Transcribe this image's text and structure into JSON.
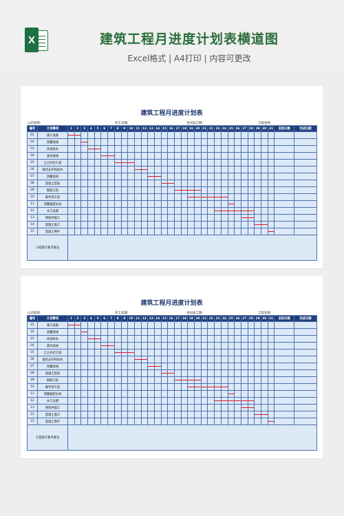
{
  "header": {
    "title": "建筑工程月进度计划表横道图",
    "subtitle": "Excel格式 | A4打印 | 内容可更改",
    "logo_letter": "X"
  },
  "sheet": {
    "title": "建筑工程月进度计划表",
    "company_label": "公司名称:",
    "start_label": "开工日期:",
    "contract_label": "合同总工期:",
    "project_label": "工程名称:",
    "columns": {
      "no": "编号",
      "task": "计划事项",
      "days": [
        "1",
        "2",
        "3",
        "4",
        "5",
        "6",
        "7",
        "8",
        "9",
        "10",
        "11",
        "12",
        "13",
        "14",
        "15",
        "16",
        "17",
        "18",
        "19",
        "20",
        "21",
        "22",
        "23",
        "24",
        "25",
        "26",
        "27",
        "28",
        "29",
        "30",
        "31"
      ],
      "actual": "实际天数",
      "done": "完成日期"
    },
    "tasks": [
      {
        "no": "01",
        "name": "施工准备",
        "start": 1,
        "end": 2
      },
      {
        "no": "02",
        "name": "测量放线",
        "start": 3,
        "end": 3
      },
      {
        "no": "03",
        "name": "场地排水",
        "start": 4,
        "end": 5
      },
      {
        "no": "04",
        "name": "基坑放线",
        "start": 6,
        "end": 7
      },
      {
        "no": "05",
        "name": "土方开挖工程",
        "start": 8,
        "end": 10
      },
      {
        "no": "06",
        "name": "基坑支护和排水",
        "start": 11,
        "end": 12
      },
      {
        "no": "07",
        "name": "测量放线",
        "start": 13,
        "end": 14
      },
      {
        "no": "08",
        "name": "混凝土垫层",
        "start": 15,
        "end": 16
      },
      {
        "no": "09",
        "name": "钢筋工程",
        "start": 17,
        "end": 20
      },
      {
        "no": "10",
        "name": "脚手架工程",
        "start": 19,
        "end": 24
      },
      {
        "no": "11",
        "name": "测量偏定标高",
        "start": 25,
        "end": 25
      },
      {
        "no": "12",
        "name": "木工支模",
        "start": 23,
        "end": 28
      },
      {
        "no": "13",
        "name": "预埋件施工",
        "start": 27,
        "end": 28
      },
      {
        "no": "14",
        "name": "混凝土施工",
        "start": 29,
        "end": 30
      },
      {
        "no": "15",
        "name": "混凝土养护",
        "start": 31,
        "end": 31
      }
    ],
    "note_label": "工程施工要点备注"
  },
  "colors": {
    "header_fill": "#1f3f7c",
    "cell_fill": "#dce9f6",
    "grid": "#4d6fae",
    "bar": "#e8151b",
    "title_green": "#2c6e3a"
  }
}
